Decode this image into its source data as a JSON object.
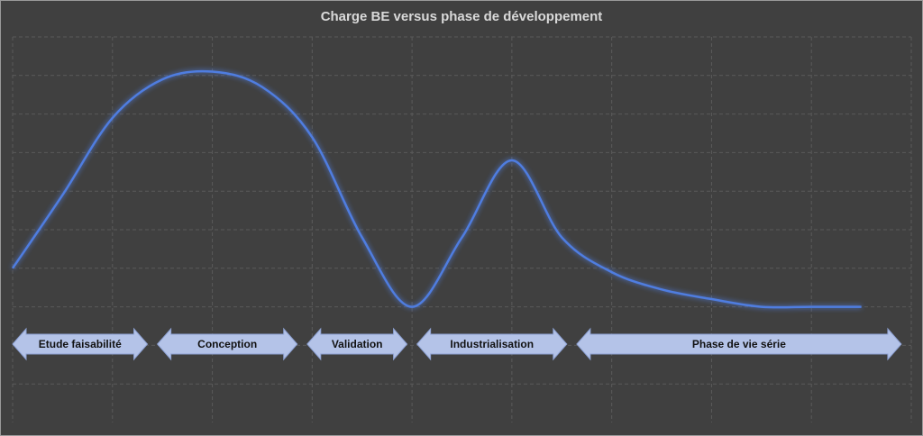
{
  "chart_data": {
    "type": "line",
    "title": "Charge BE versus phase de développement",
    "xlabel": "",
    "ylabel": "",
    "x": [
      0,
      0.5,
      1,
      1.5,
      2,
      2.5,
      3,
      3.5,
      4,
      4.5,
      5,
      5.5,
      6,
      6.5,
      7,
      7.5,
      8,
      8.5
    ],
    "xlim": [
      0,
      9
    ],
    "ylim": [
      0,
      10
    ],
    "grid": true,
    "series": [
      {
        "values": [
          4.0,
          5.9,
          7.9,
          8.9,
          9.1,
          8.7,
          7.4,
          4.8,
          3.0,
          4.8,
          6.8,
          4.8,
          3.9,
          3.45,
          3.2,
          3.0,
          3.0,
          3.0
        ],
        "color": "#4f7de0"
      }
    ],
    "phases": [
      {
        "label": "Etude faisabilité",
        "start": 0,
        "end": 1.35
      },
      {
        "label": "Conception",
        "start": 1.45,
        "end": 2.85
      },
      {
        "label": "Validation",
        "start": 2.95,
        "end": 3.95
      },
      {
        "label": "Industrialisation",
        "start": 4.05,
        "end": 5.55
      },
      {
        "label": "Phase de vie série",
        "start": 5.65,
        "end": 8.9
      }
    ],
    "colors": {
      "background": "#404040",
      "grid": "#5a5a5a",
      "arrow_fill": "#b4c3e8",
      "arrow_stroke": "#8ea2d4",
      "title": "#d9d9d9"
    }
  }
}
